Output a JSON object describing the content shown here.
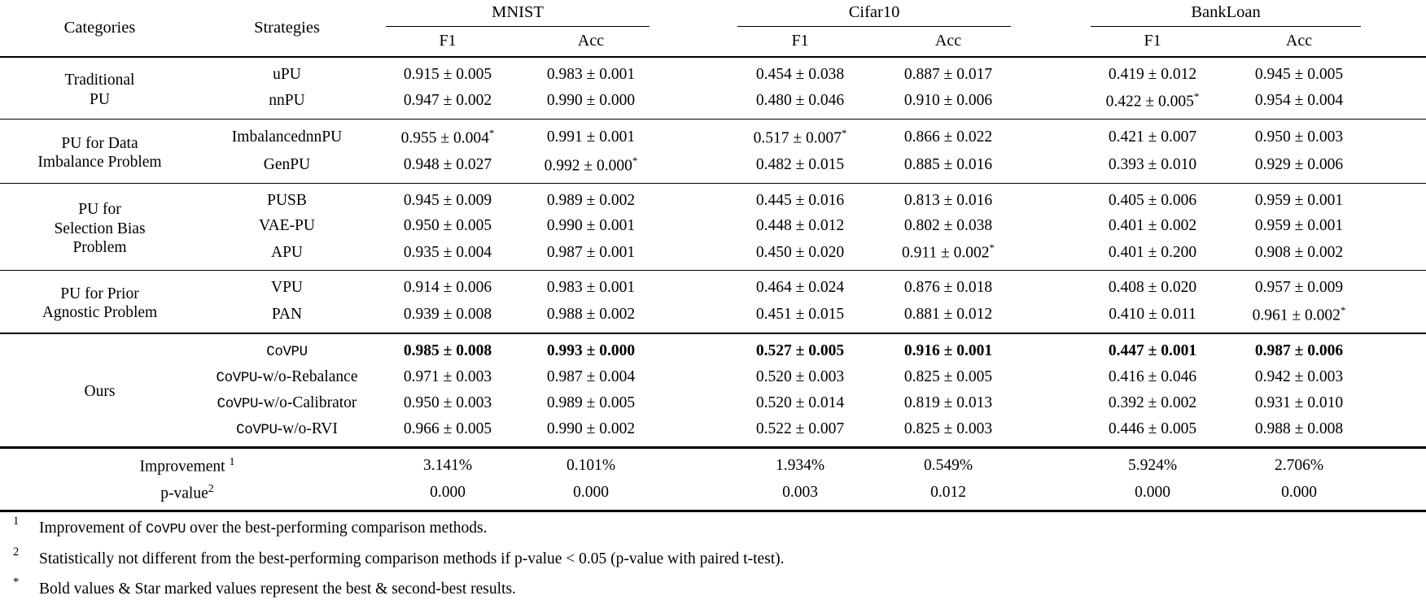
{
  "table": {
    "headers": {
      "categories": "Categories",
      "strategies": "Strategies"
    },
    "datasets": [
      {
        "name": "MNIST",
        "metrics": [
          "F1",
          "Acc"
        ]
      },
      {
        "name": "Cifar10",
        "metrics": [
          "F1",
          "Acc"
        ]
      },
      {
        "name": "BankLoan",
        "metrics": [
          "F1",
          "Acc"
        ]
      }
    ],
    "groups": [
      {
        "category": "Traditional\nPU",
        "rows": [
          {
            "strategy": {
              "text": "uPU"
            },
            "values": [
              {
                "v": "0.915 ± 0.005"
              },
              {
                "v": "0.983 ± 0.001"
              },
              {
                "v": "0.454 ± 0.038"
              },
              {
                "v": "0.887 ± 0.017"
              },
              {
                "v": "0.419 ± 0.012"
              },
              {
                "v": "0.945 ± 0.005"
              }
            ]
          },
          {
            "strategy": {
              "text": "nnPU"
            },
            "values": [
              {
                "v": "0.947 ± 0.002"
              },
              {
                "v": "0.990 ± 0.000"
              },
              {
                "v": "0.480 ± 0.046"
              },
              {
                "v": "0.910 ± 0.006"
              },
              {
                "v": "0.422 ± 0.005",
                "star": true
              },
              {
                "v": "0.954 ± 0.004"
              }
            ]
          }
        ]
      },
      {
        "category": "PU for Data\nImbalance Problem",
        "rows": [
          {
            "strategy": {
              "text": "ImbalancednnPU"
            },
            "values": [
              {
                "v": "0.955 ± 0.004",
                "star": true
              },
              {
                "v": "0.991 ± 0.001"
              },
              {
                "v": "0.517 ± 0.007",
                "star": true
              },
              {
                "v": "0.866 ± 0.022"
              },
              {
                "v": "0.421 ± 0.007"
              },
              {
                "v": "0.950 ± 0.003"
              }
            ]
          },
          {
            "strategy": {
              "text": "GenPU"
            },
            "values": [
              {
                "v": "0.948 ± 0.027"
              },
              {
                "v": "0.992 ± 0.000",
                "star": true
              },
              {
                "v": "0.482 ± 0.015"
              },
              {
                "v": "0.885 ± 0.016"
              },
              {
                "v": "0.393 ± 0.010"
              },
              {
                "v": "0.929 ± 0.006"
              }
            ]
          }
        ]
      },
      {
        "category": "PU for\nSelection Bias\nProblem",
        "rows": [
          {
            "strategy": {
              "text": "PUSB"
            },
            "values": [
              {
                "v": "0.945 ± 0.009"
              },
              {
                "v": "0.989 ± 0.002"
              },
              {
                "v": "0.445 ± 0.016"
              },
              {
                "v": "0.813 ± 0.016"
              },
              {
                "v": "0.405 ± 0.006"
              },
              {
                "v": "0.959 ± 0.001"
              }
            ]
          },
          {
            "strategy": {
              "text": "VAE-PU"
            },
            "values": [
              {
                "v": "0.950 ± 0.005"
              },
              {
                "v": "0.990 ± 0.001"
              },
              {
                "v": "0.448 ± 0.012"
              },
              {
                "v": "0.802 ± 0.038"
              },
              {
                "v": "0.401 ± 0.002"
              },
              {
                "v": "0.959 ± 0.001"
              }
            ]
          },
          {
            "strategy": {
              "text": "APU"
            },
            "values": [
              {
                "v": "0.935 ± 0.004"
              },
              {
                "v": "0.987 ± 0.001"
              },
              {
                "v": "0.450 ± 0.020"
              },
              {
                "v": "0.911 ± 0.002",
                "star": true
              },
              {
                "v": "0.401 ± 0.200"
              },
              {
                "v": "0.908 ± 0.002"
              }
            ]
          }
        ]
      },
      {
        "category": "PU for Prior\nAgnostic Problem",
        "rows": [
          {
            "strategy": {
              "text": "VPU"
            },
            "values": [
              {
                "v": "0.914 ± 0.006"
              },
              {
                "v": "0.983 ± 0.001"
              },
              {
                "v": "0.464 ± 0.024"
              },
              {
                "v": "0.876 ± 0.018"
              },
              {
                "v": "0.408 ± 0.020"
              },
              {
                "v": "0.957 ± 0.009"
              }
            ]
          },
          {
            "strategy": {
              "text": "PAN"
            },
            "values": [
              {
                "v": "0.939 ± 0.008"
              },
              {
                "v": "0.988 ± 0.002"
              },
              {
                "v": "0.451 ± 0.015"
              },
              {
                "v": "0.881 ± 0.012"
              },
              {
                "v": "0.410 ± 0.011"
              },
              {
                "v": "0.961 ± 0.002",
                "star": true
              }
            ]
          }
        ]
      },
      {
        "category": "Ours",
        "heavy": true,
        "rows": [
          {
            "strategy": {
              "mono": "CoVPU",
              "text": ""
            },
            "bold": true,
            "values": [
              {
                "v": "0.985 ± 0.008"
              },
              {
                "v": "0.993 ± 0.000"
              },
              {
                "v": "0.527 ± 0.005"
              },
              {
                "v": "0.916 ± 0.001"
              },
              {
                "v": "0.447 ± 0.001"
              },
              {
                "v": "0.987 ± 0.006"
              }
            ]
          },
          {
            "strategy": {
              "mono": "CoVPU",
              "text": "-w/o-Rebalance"
            },
            "values": [
              {
                "v": "0.971 ± 0.003"
              },
              {
                "v": "0.987 ± 0.004"
              },
              {
                "v": "0.520 ± 0.003"
              },
              {
                "v": "0.825 ± 0.005"
              },
              {
                "v": "0.416 ± 0.046"
              },
              {
                "v": "0.942 ± 0.003"
              }
            ]
          },
          {
            "strategy": {
              "mono": "CoVPU",
              "text": "-w/o-Calibrator"
            },
            "values": [
              {
                "v": "0.950 ± 0.003"
              },
              {
                "v": "0.989 ± 0.005"
              },
              {
                "v": "0.520 ± 0.014"
              },
              {
                "v": "0.819 ± 0.013"
              },
              {
                "v": "0.392 ± 0.002"
              },
              {
                "v": "0.931 ± 0.010"
              }
            ]
          },
          {
            "strategy": {
              "mono": "CoVPU",
              "text": "-w/o-RVI"
            },
            "values": [
              {
                "v": "0.966 ± 0.005"
              },
              {
                "v": "0.990 ± 0.002"
              },
              {
                "v": "0.522 ± 0.007"
              },
              {
                "v": "0.825 ± 0.003"
              },
              {
                "v": "0.446 ± 0.005"
              },
              {
                "v": "0.988 ± 0.008"
              }
            ]
          }
        ]
      }
    ],
    "summary": [
      {
        "label": "Improvement ",
        "sup": "1",
        "values": [
          "3.141%",
          "0.101%",
          "1.934%",
          "0.549%",
          "5.924%",
          "2.706%"
        ]
      },
      {
        "label": "p-value",
        "sup": "2",
        "values": [
          "0.000",
          "0.000",
          "0.003",
          "0.012",
          "0.000",
          "0.000"
        ]
      }
    ],
    "footnotes": [
      {
        "marker": "1",
        "segments": [
          {
            "t": "Improvement of "
          },
          {
            "t": "CoVPU",
            "mono": true
          },
          {
            "t": " over the best-performing comparison methods."
          }
        ]
      },
      {
        "marker": "2",
        "segments": [
          {
            "t": "Statistically not different from the best-performing comparison methods if p-value < 0.05 (p-value with paired t-test)."
          }
        ]
      },
      {
        "marker": "*",
        "segments": [
          {
            "t": "Bold values & Star marked values represent the best & second-best results."
          }
        ]
      }
    ]
  }
}
